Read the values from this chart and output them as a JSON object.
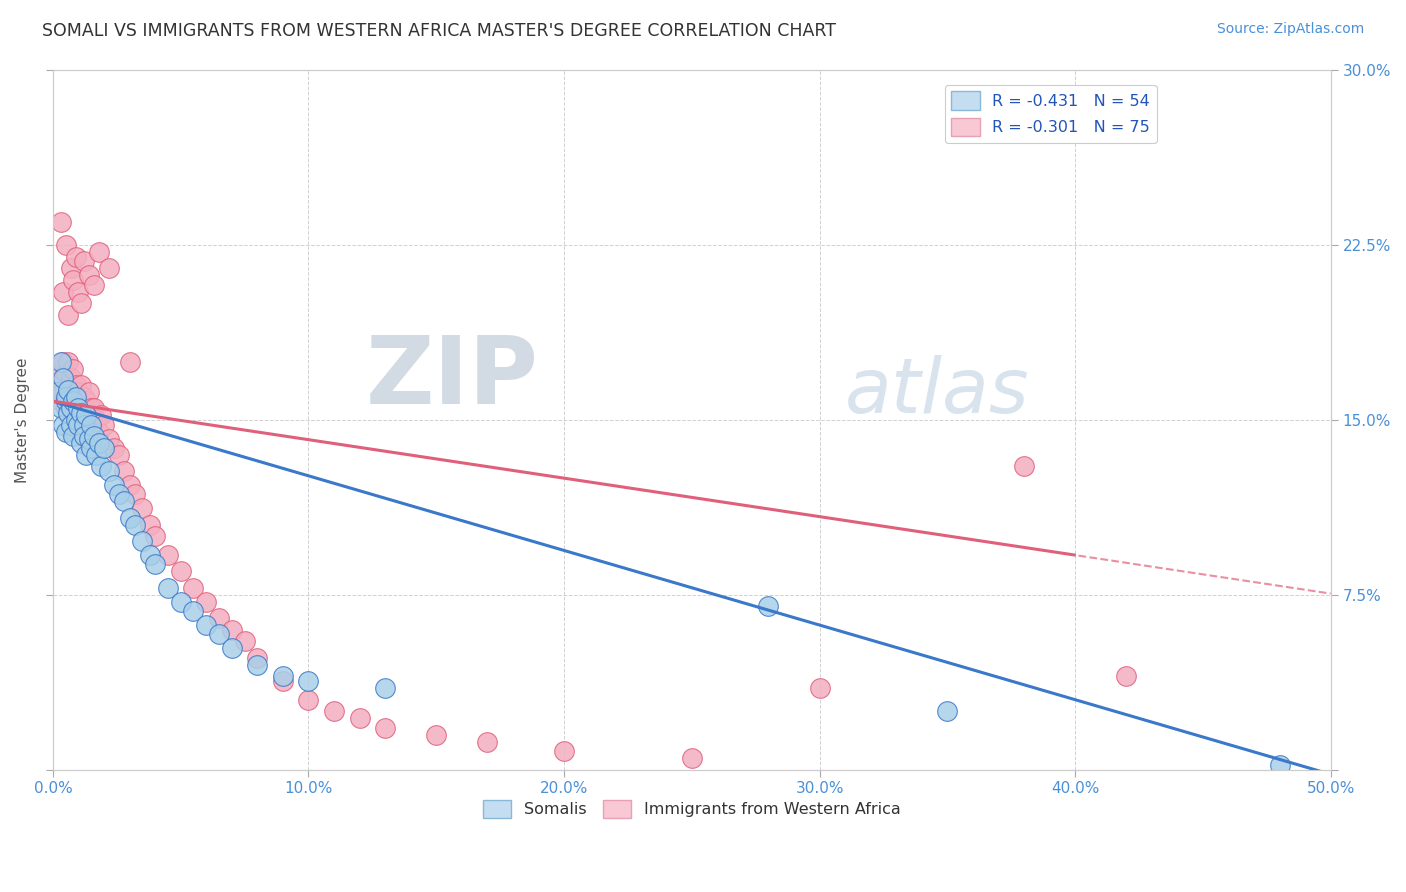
{
  "title": "SOMALI VS IMMIGRANTS FROM WESTERN AFRICA MASTER'S DEGREE CORRELATION CHART",
  "source_text": "Source: ZipAtlas.com",
  "ylabel": "Master's Degree",
  "xlim": [
    0.0,
    0.5
  ],
  "ylim": [
    0.0,
    0.3
  ],
  "xticks": [
    0.0,
    0.1,
    0.2,
    0.3,
    0.4,
    0.5
  ],
  "yticks": [
    0.0,
    0.075,
    0.15,
    0.225,
    0.3
  ],
  "xticklabels": [
    "0.0%",
    "10.0%",
    "20.0%",
    "30.0%",
    "40.0%",
    "50.0%"
  ],
  "yticklabels_right": [
    "",
    "7.5%",
    "15.0%",
    "22.5%",
    "30.0%"
  ],
  "color_blue": "#a8cfe8",
  "color_pink": "#f4aec0",
  "line_blue": "#3a78c9",
  "line_pink": "#e0607a",
  "title_color": "#333333",
  "tick_color": "#4a90d9",
  "watermark_zip": "#c8d8e8",
  "watermark_atlas": "#b8cfe0",
  "somali_x": [
    0.002,
    0.003,
    0.003,
    0.004,
    0.004,
    0.005,
    0.005,
    0.005,
    0.006,
    0.006,
    0.007,
    0.007,
    0.008,
    0.008,
    0.009,
    0.009,
    0.01,
    0.01,
    0.011,
    0.011,
    0.012,
    0.012,
    0.013,
    0.013,
    0.014,
    0.015,
    0.015,
    0.016,
    0.017,
    0.018,
    0.019,
    0.02,
    0.022,
    0.024,
    0.026,
    0.028,
    0.03,
    0.032,
    0.035,
    0.038,
    0.04,
    0.045,
    0.05,
    0.055,
    0.06,
    0.065,
    0.07,
    0.08,
    0.09,
    0.1,
    0.13,
    0.28,
    0.35,
    0.48
  ],
  "somali_y": [
    0.162,
    0.175,
    0.155,
    0.168,
    0.148,
    0.158,
    0.145,
    0.16,
    0.153,
    0.163,
    0.155,
    0.148,
    0.158,
    0.143,
    0.15,
    0.16,
    0.155,
    0.148,
    0.153,
    0.14,
    0.148,
    0.143,
    0.152,
    0.135,
    0.142,
    0.148,
    0.138,
    0.143,
    0.135,
    0.14,
    0.13,
    0.138,
    0.128,
    0.122,
    0.118,
    0.115,
    0.108,
    0.105,
    0.098,
    0.092,
    0.088,
    0.078,
    0.072,
    0.068,
    0.062,
    0.058,
    0.052,
    0.045,
    0.04,
    0.038,
    0.035,
    0.07,
    0.025,
    0.002
  ],
  "western_x": [
    0.002,
    0.003,
    0.003,
    0.004,
    0.004,
    0.005,
    0.005,
    0.006,
    0.006,
    0.007,
    0.007,
    0.008,
    0.008,
    0.009,
    0.009,
    0.01,
    0.01,
    0.011,
    0.011,
    0.012,
    0.012,
    0.013,
    0.013,
    0.014,
    0.015,
    0.015,
    0.016,
    0.017,
    0.018,
    0.019,
    0.02,
    0.022,
    0.024,
    0.026,
    0.028,
    0.03,
    0.032,
    0.035,
    0.038,
    0.04,
    0.045,
    0.05,
    0.055,
    0.06,
    0.065,
    0.07,
    0.075,
    0.08,
    0.09,
    0.1,
    0.11,
    0.12,
    0.13,
    0.15,
    0.17,
    0.2,
    0.25,
    0.3,
    0.38,
    0.42,
    0.003,
    0.004,
    0.005,
    0.006,
    0.007,
    0.008,
    0.009,
    0.01,
    0.011,
    0.012,
    0.014,
    0.016,
    0.018,
    0.022,
    0.03
  ],
  "western_y": [
    0.165,
    0.172,
    0.158,
    0.175,
    0.162,
    0.17,
    0.155,
    0.165,
    0.175,
    0.16,
    0.168,
    0.162,
    0.172,
    0.158,
    0.165,
    0.162,
    0.155,
    0.165,
    0.15,
    0.16,
    0.155,
    0.158,
    0.148,
    0.162,
    0.155,
    0.148,
    0.155,
    0.15,
    0.145,
    0.152,
    0.148,
    0.142,
    0.138,
    0.135,
    0.128,
    0.122,
    0.118,
    0.112,
    0.105,
    0.1,
    0.092,
    0.085,
    0.078,
    0.072,
    0.065,
    0.06,
    0.055,
    0.048,
    0.038,
    0.03,
    0.025,
    0.022,
    0.018,
    0.015,
    0.012,
    0.008,
    0.005,
    0.035,
    0.13,
    0.04,
    0.235,
    0.205,
    0.225,
    0.195,
    0.215,
    0.21,
    0.22,
    0.205,
    0.2,
    0.218,
    0.212,
    0.208,
    0.222,
    0.215,
    0.175
  ]
}
